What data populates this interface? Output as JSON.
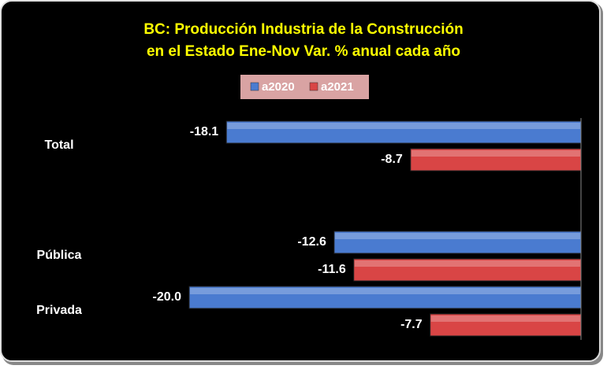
{
  "chart_data": {
    "type": "hbar",
    "title": [
      "BC:  Producción Industria de la Construcción",
      "en el Estado Ene-Nov  Var. %  anual cada año"
    ],
    "categories": [
      "Total",
      null,
      "Pública",
      "Privada"
    ],
    "series": [
      {
        "name": "a2020",
        "color": "#4a7bd0",
        "values": [
          -18.1,
          null,
          -12.6,
          -20.0
        ],
        "value_labels": [
          "-18.1",
          null,
          "-12.6",
          "-20.0"
        ]
      },
      {
        "name": "a2021",
        "color": "#d94545",
        "values": [
          -8.7,
          null,
          -11.6,
          -7.7
        ],
        "value_labels": [
          "-8.7",
          null,
          "-11.6",
          "-7.7"
        ]
      }
    ],
    "xlim": [
      -20,
      0
    ],
    "legend": "top"
  }
}
